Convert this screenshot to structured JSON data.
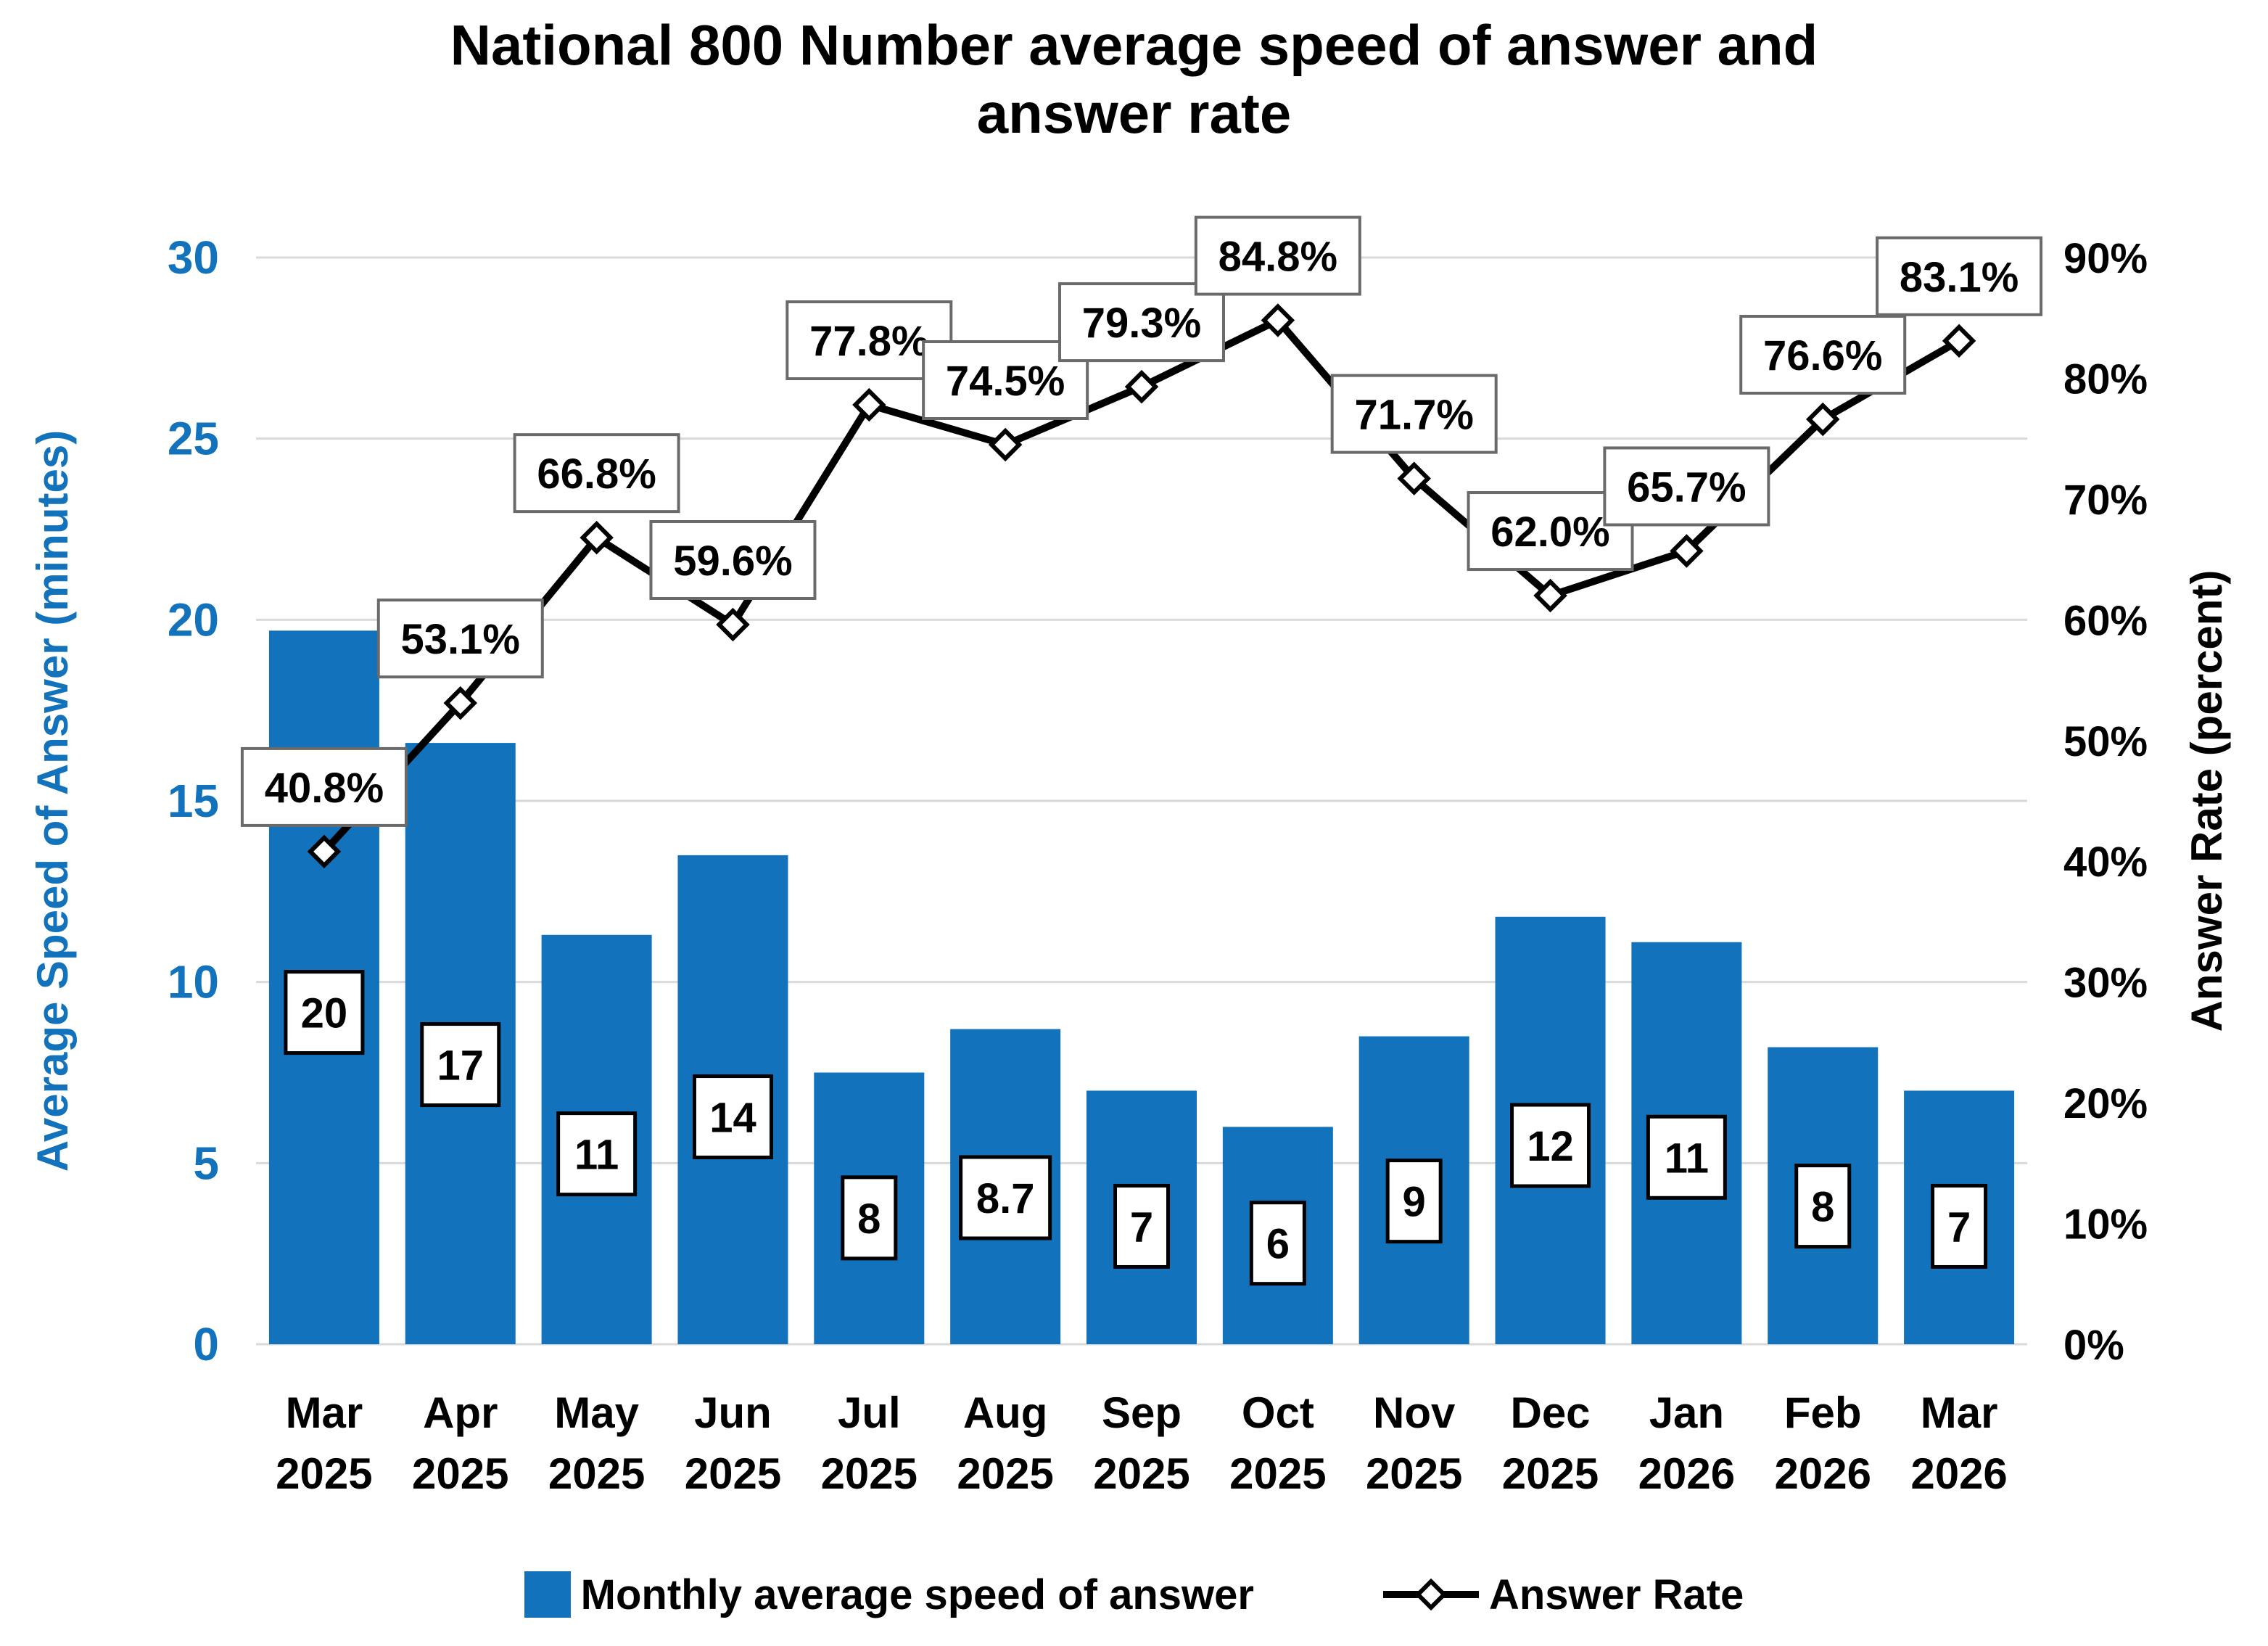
{
  "title": {
    "line1": "National 800 Number average speed of answer and",
    "line2": "answer rate",
    "full": "National 800 Number average speed of answer and answer rate"
  },
  "colors": {
    "bar": "#1272BC",
    "left_axis_text": "#1272BC",
    "line": "#000000",
    "gridline": "#D9D9D9",
    "marker_fill": "#FFFFFF",
    "marker_border": "#000000",
    "pct_box_border": "#6A6A6A",
    "bar_box_border": "#000000",
    "label_box_fill": "#FFFFFF"
  },
  "legend": {
    "bar_label": "Monthly average speed of answer",
    "line_label": "Answer Rate"
  },
  "chart_data": {
    "type": "combo",
    "title": "National 800 Number average speed of answer and answer rate",
    "categories": [
      {
        "month": "Mar",
        "year": "2025"
      },
      {
        "month": "Apr",
        "year": "2025"
      },
      {
        "month": "May",
        "year": "2025"
      },
      {
        "month": "Jun",
        "year": "2025"
      },
      {
        "month": "Jul",
        "year": "2025"
      },
      {
        "month": "Aug",
        "year": "2025"
      },
      {
        "month": "Sep",
        "year": "2025"
      },
      {
        "month": "Oct",
        "year": "2025"
      },
      {
        "month": "Nov",
        "year": "2025"
      },
      {
        "month": "Dec",
        "year": "2025"
      },
      {
        "month": "Jan",
        "year": "2026"
      },
      {
        "month": "Feb",
        "year": "2026"
      },
      {
        "month": "Mar",
        "year": "2026"
      }
    ],
    "series": [
      {
        "name": "Monthly average speed of answer",
        "type": "bar",
        "axis": "left",
        "values": [
          20,
          17,
          11,
          14,
          8,
          8.7,
          7,
          6,
          9,
          12,
          11,
          8,
          7
        ],
        "labels": [
          "20",
          "17",
          "11",
          "14",
          "8",
          "8.7",
          "7",
          "6",
          "9",
          "12",
          "11",
          "8",
          "7"
        ],
        "plotted_values": [
          19.7,
          16.6,
          11.3,
          13.5,
          7.5,
          8.7,
          7.0,
          6.0,
          8.5,
          11.8,
          11.1,
          8.2,
          7.0
        ]
      },
      {
        "name": "Answer Rate",
        "type": "line",
        "axis": "right",
        "values": [
          40.8,
          53.1,
          66.8,
          59.6,
          77.8,
          74.5,
          79.3,
          84.8,
          71.7,
          62.0,
          65.7,
          76.6,
          83.1
        ],
        "labels": [
          "40.8%",
          "53.1%",
          "66.8%",
          "59.6%",
          "77.8%",
          "74.5%",
          "79.3%",
          "84.8%",
          "71.7%",
          "62.0%",
          "65.7%",
          "76.6%",
          "83.1%"
        ]
      }
    ],
    "left_axis": {
      "title": "Average Speed of Answer (minutes)",
      "min": 0,
      "max": 30,
      "step": 5,
      "ticks": [
        "0",
        "5",
        "10",
        "15",
        "20",
        "25",
        "30"
      ]
    },
    "right_axis": {
      "title": "Answer Rate (percent)",
      "min": 0,
      "max": 90,
      "step": 10,
      "ticks": [
        "0%",
        "10%",
        "20%",
        "30%",
        "40%",
        "50%",
        "60%",
        "70%",
        "80%",
        "90%"
      ]
    },
    "grid": true,
    "legend_position": "bottom"
  }
}
